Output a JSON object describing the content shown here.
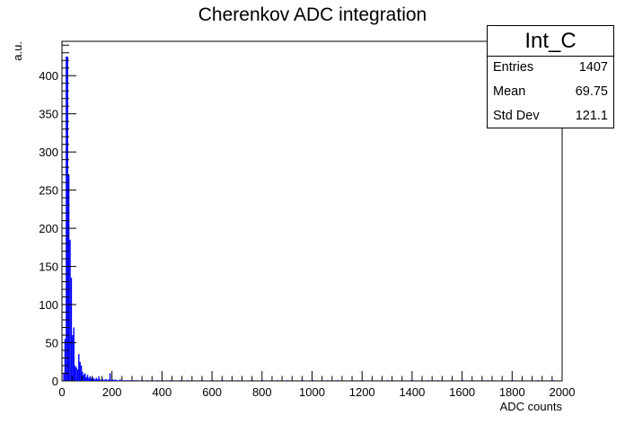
{
  "chart_data": {
    "type": "bar",
    "title": "Cherenkov ADC integration",
    "xlabel": "ADC counts",
    "ylabel": "a.u.",
    "xlim": [
      0,
      2000
    ],
    "ylim": [
      0,
      445
    ],
    "grid": false,
    "bar_color": "#0000ff",
    "x_ticks": [
      "0",
      "200",
      "400",
      "600",
      "800",
      "1000",
      "1200",
      "1400",
      "1600",
      "1800",
      "2000"
    ],
    "y_ticks": [
      "0",
      "50",
      "100",
      "150",
      "200",
      "250",
      "300",
      "350",
      "400"
    ],
    "bin_width": 5,
    "bins": [
      [
        5,
        10
      ],
      [
        10,
        55
      ],
      [
        15,
        425
      ],
      [
        20,
        425
      ],
      [
        25,
        270
      ],
      [
        30,
        185
      ],
      [
        35,
        135
      ],
      [
        40,
        60
      ],
      [
        45,
        70
      ],
      [
        50,
        20
      ],
      [
        55,
        18
      ],
      [
        60,
        15
      ],
      [
        65,
        35
      ],
      [
        70,
        25
      ],
      [
        75,
        20
      ],
      [
        80,
        12
      ],
      [
        85,
        8
      ],
      [
        90,
        10
      ],
      [
        95,
        5
      ],
      [
        100,
        8
      ],
      [
        105,
        4
      ],
      [
        110,
        6
      ],
      [
        115,
        3
      ],
      [
        120,
        5
      ],
      [
        125,
        3
      ],
      [
        130,
        2
      ],
      [
        135,
        4
      ],
      [
        140,
        2
      ],
      [
        145,
        6
      ],
      [
        150,
        2
      ],
      [
        155,
        1
      ],
      [
        160,
        3
      ],
      [
        165,
        1
      ],
      [
        170,
        2
      ],
      [
        175,
        2
      ],
      [
        180,
        1
      ],
      [
        185,
        2
      ],
      [
        190,
        10
      ],
      [
        195,
        1
      ],
      [
        200,
        2
      ],
      [
        205,
        1
      ],
      [
        210,
        2
      ],
      [
        215,
        1
      ],
      [
        220,
        1
      ],
      [
        230,
        2
      ],
      [
        240,
        1
      ],
      [
        250,
        1
      ],
      [
        260,
        1
      ],
      [
        270,
        1
      ],
      [
        280,
        1
      ],
      [
        290,
        1
      ],
      [
        300,
        1
      ],
      [
        320,
        1
      ],
      [
        340,
        1
      ],
      [
        360,
        1
      ],
      [
        380,
        1
      ],
      [
        400,
        1
      ],
      [
        430,
        1
      ],
      [
        470,
        1
      ],
      [
        500,
        1
      ],
      [
        560,
        1
      ],
      [
        600,
        1
      ],
      [
        640,
        1
      ],
      [
        700,
        1
      ],
      [
        760,
        1
      ],
      [
        800,
        1
      ],
      [
        860,
        1
      ],
      [
        900,
        1
      ],
      [
        960,
        1
      ],
      [
        1000,
        1
      ],
      [
        1060,
        1
      ],
      [
        1100,
        1
      ],
      [
        1200,
        1
      ],
      [
        1300,
        1
      ],
      [
        1400,
        1
      ],
      [
        1460,
        1
      ],
      [
        1500,
        1
      ],
      [
        1600,
        1
      ],
      [
        1700,
        1
      ],
      [
        1800,
        1
      ],
      [
        1900,
        1
      ],
      [
        1960,
        1
      ]
    ]
  },
  "stats": {
    "title": "Int_C",
    "entries_label": "Entries",
    "entries_value": "1407",
    "mean_label": "Mean",
    "mean_value": "69.75",
    "stddev_label": "Std Dev",
    "stddev_value": "121.1"
  }
}
